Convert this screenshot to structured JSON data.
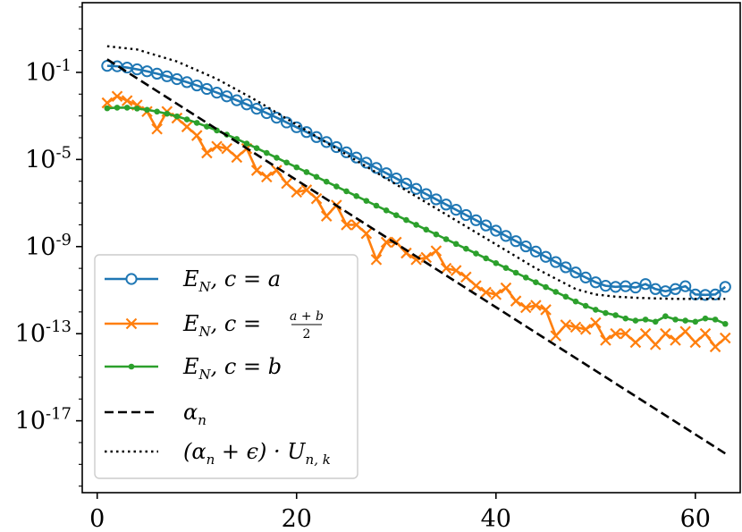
{
  "chart_data": {
    "type": "line",
    "title": "",
    "xlabel": "",
    "ylabel": "",
    "xlim": [
      -1.5,
      64.5
    ],
    "ylim_log10": [
      -20.3,
      2.2
    ],
    "yscale": "log",
    "x_ticks": [
      0,
      20,
      40,
      60
    ],
    "x_tick_labels": [
      "0",
      "20",
      "40",
      "60"
    ],
    "y_ticks_log10": [
      -1,
      -5,
      -9,
      -13,
      -17
    ],
    "y_tick_labels": [
      {
        "base": "10",
        "exp": "-1"
      },
      {
        "base": "10",
        "exp": "-5"
      },
      {
        "base": "10",
        "exp": "-9"
      },
      {
        "base": "10",
        "exp": "-13"
      },
      {
        "base": "10",
        "exp": "-17"
      }
    ],
    "legend_position": "lower-left",
    "colors": {
      "blue": "#1f77b4",
      "orange": "#ff7f0e",
      "green": "#2ca02c",
      "black": "#000000"
    },
    "series": [
      {
        "name": "E_N, c = a",
        "legend_label": "E_N, c = a",
        "color": "#1f77b4",
        "marker": "circle-open",
        "linestyle": "solid",
        "x": [
          1,
          2,
          3,
          4,
          5,
          6,
          7,
          8,
          9,
          10,
          11,
          12,
          13,
          14,
          15,
          16,
          17,
          18,
          19,
          20,
          21,
          22,
          23,
          24,
          25,
          26,
          27,
          28,
          29,
          30,
          31,
          32,
          33,
          34,
          35,
          36,
          37,
          38,
          39,
          40,
          41,
          42,
          43,
          44,
          45,
          46,
          47,
          48,
          49,
          50,
          51,
          52,
          53,
          54,
          55,
          56,
          57,
          58,
          59,
          60,
          61,
          62,
          63
        ],
        "y_log10": [
          -0.7,
          -0.72,
          -0.78,
          -0.86,
          -0.95,
          -1.06,
          -1.18,
          -1.31,
          -1.45,
          -1.6,
          -1.76,
          -1.93,
          -2.1,
          -2.28,
          -2.47,
          -2.67,
          -2.87,
          -3.08,
          -3.3,
          -3.52,
          -3.74,
          -3.97,
          -4.2,
          -4.43,
          -4.67,
          -4.91,
          -5.15,
          -5.39,
          -5.63,
          -5.87,
          -6.11,
          -6.35,
          -6.59,
          -6.83,
          -7.07,
          -7.31,
          -7.55,
          -7.79,
          -8.03,
          -8.27,
          -8.51,
          -8.75,
          -8.99,
          -9.23,
          -9.47,
          -9.71,
          -9.95,
          -10.19,
          -10.42,
          -10.64,
          -10.8,
          -10.85,
          -10.82,
          -10.88,
          -10.72,
          -10.95,
          -11.05,
          -10.95,
          -10.82,
          -11.2,
          -11.22,
          -11.2,
          -10.85
        ]
      },
      {
        "name": "E_N, c = (a+b)/2",
        "legend_label": "E_N, c = (a+b)/2",
        "color": "#ff7f0e",
        "marker": "x",
        "linestyle": "solid",
        "x": [
          1,
          2,
          3,
          4,
          5,
          6,
          7,
          8,
          9,
          10,
          11,
          12,
          13,
          14,
          15,
          16,
          17,
          18,
          19,
          20,
          21,
          22,
          23,
          24,
          25,
          26,
          27,
          28,
          29,
          30,
          31,
          32,
          33,
          34,
          35,
          36,
          37,
          38,
          39,
          40,
          41,
          42,
          43,
          44,
          45,
          46,
          47,
          48,
          49,
          50,
          51,
          52,
          53,
          54,
          55,
          56,
          57,
          58,
          59,
          60,
          61,
          62,
          63
        ],
        "y_log10": [
          -2.4,
          -2.1,
          -2.3,
          -2.5,
          -2.8,
          -3.6,
          -2.8,
          -3.1,
          -3.5,
          -3.9,
          -4.7,
          -4.4,
          -4.5,
          -4.9,
          -4.5,
          -5.5,
          -5.8,
          -5.5,
          -6.1,
          -6.5,
          -6.4,
          -6.8,
          -7.6,
          -7.1,
          -8.0,
          -8.0,
          -8.4,
          -9.6,
          -8.8,
          -8.8,
          -9.3,
          -9.6,
          -9.5,
          -9.2,
          -10.0,
          -10.1,
          -10.4,
          -10.8,
          -11.1,
          -11.2,
          -10.9,
          -11.5,
          -11.8,
          -11.7,
          -11.9,
          -13.1,
          -12.6,
          -12.7,
          -12.8,
          -12.5,
          -13.3,
          -13.0,
          -13.0,
          -13.4,
          -13.0,
          -13.5,
          -13.0,
          -13.3,
          -12.9,
          -13.4,
          -13.0,
          -13.6,
          -13.2
        ]
      },
      {
        "name": "E_N, c = b",
        "legend_label": "E_N, c = b",
        "color": "#2ca02c",
        "marker": "dot",
        "linestyle": "solid",
        "x": [
          1,
          2,
          3,
          4,
          5,
          6,
          7,
          8,
          9,
          10,
          11,
          12,
          13,
          14,
          15,
          16,
          17,
          18,
          19,
          20,
          21,
          22,
          23,
          24,
          25,
          26,
          27,
          28,
          29,
          30,
          31,
          32,
          33,
          34,
          35,
          36,
          37,
          38,
          39,
          40,
          41,
          42,
          43,
          44,
          45,
          46,
          47,
          48,
          49,
          50,
          51,
          52,
          53,
          54,
          55,
          56,
          57,
          58,
          59,
          60,
          61,
          62,
          63
        ],
        "y_log10": [
          -2.65,
          -2.62,
          -2.62,
          -2.66,
          -2.72,
          -2.8,
          -2.9,
          -3.02,
          -3.16,
          -3.32,
          -3.49,
          -3.67,
          -3.86,
          -4.06,
          -4.27,
          -4.48,
          -4.7,
          -4.92,
          -5.14,
          -5.36,
          -5.58,
          -5.8,
          -6.02,
          -6.24,
          -6.46,
          -6.68,
          -6.9,
          -7.12,
          -7.34,
          -7.56,
          -7.78,
          -8.0,
          -8.22,
          -8.44,
          -8.66,
          -8.88,
          -9.1,
          -9.32,
          -9.54,
          -9.76,
          -9.98,
          -10.2,
          -10.42,
          -10.64,
          -10.86,
          -11.08,
          -11.3,
          -11.52,
          -11.72,
          -11.9,
          -12.05,
          -12.15,
          -12.3,
          -12.4,
          -12.35,
          -12.45,
          -12.2,
          -12.35,
          -12.4,
          -12.45,
          -12.3,
          -12.35,
          -12.55
        ]
      },
      {
        "name": "alpha_n",
        "legend_label": "α_n",
        "color": "#000000",
        "marker": "none",
        "linestyle": "dashed",
        "x": [
          1,
          63
        ],
        "y_log10": [
          -0.4,
          -18.5
        ]
      },
      {
        "name": "(alpha_n + epsilon) * U_{n,k}",
        "legend_label": "(α_n + ϵ) · U_{n, k}",
        "color": "#000000",
        "marker": "none",
        "linestyle": "dotted",
        "x": [
          1,
          4,
          8,
          12,
          16,
          20,
          24,
          28,
          32,
          36,
          40,
          44,
          48,
          50,
          52,
          54,
          56,
          58,
          60,
          63
        ],
        "y_log10": [
          0.2,
          0.05,
          -0.5,
          -1.3,
          -2.3,
          -3.4,
          -4.5,
          -5.6,
          -6.7,
          -7.8,
          -8.9,
          -10.0,
          -10.95,
          -11.2,
          -11.3,
          -11.35,
          -11.38,
          -11.4,
          -11.4,
          -11.4
        ]
      }
    ],
    "legend_entries": [
      {
        "main": "E",
        "sub": "N",
        "rest": ", c = a"
      },
      {
        "main": "E",
        "sub": "N",
        "rest": ", c = ",
        "frac_num": "a + b",
        "frac_den": "2"
      },
      {
        "main": "E",
        "sub": "N",
        "rest": ", c = b"
      },
      {
        "main": "α",
        "sub": "n",
        "rest": ""
      },
      {
        "main": "(α",
        "sub": "n",
        "rest": " + ϵ) · U",
        "sub2": "n, k"
      }
    ]
  }
}
